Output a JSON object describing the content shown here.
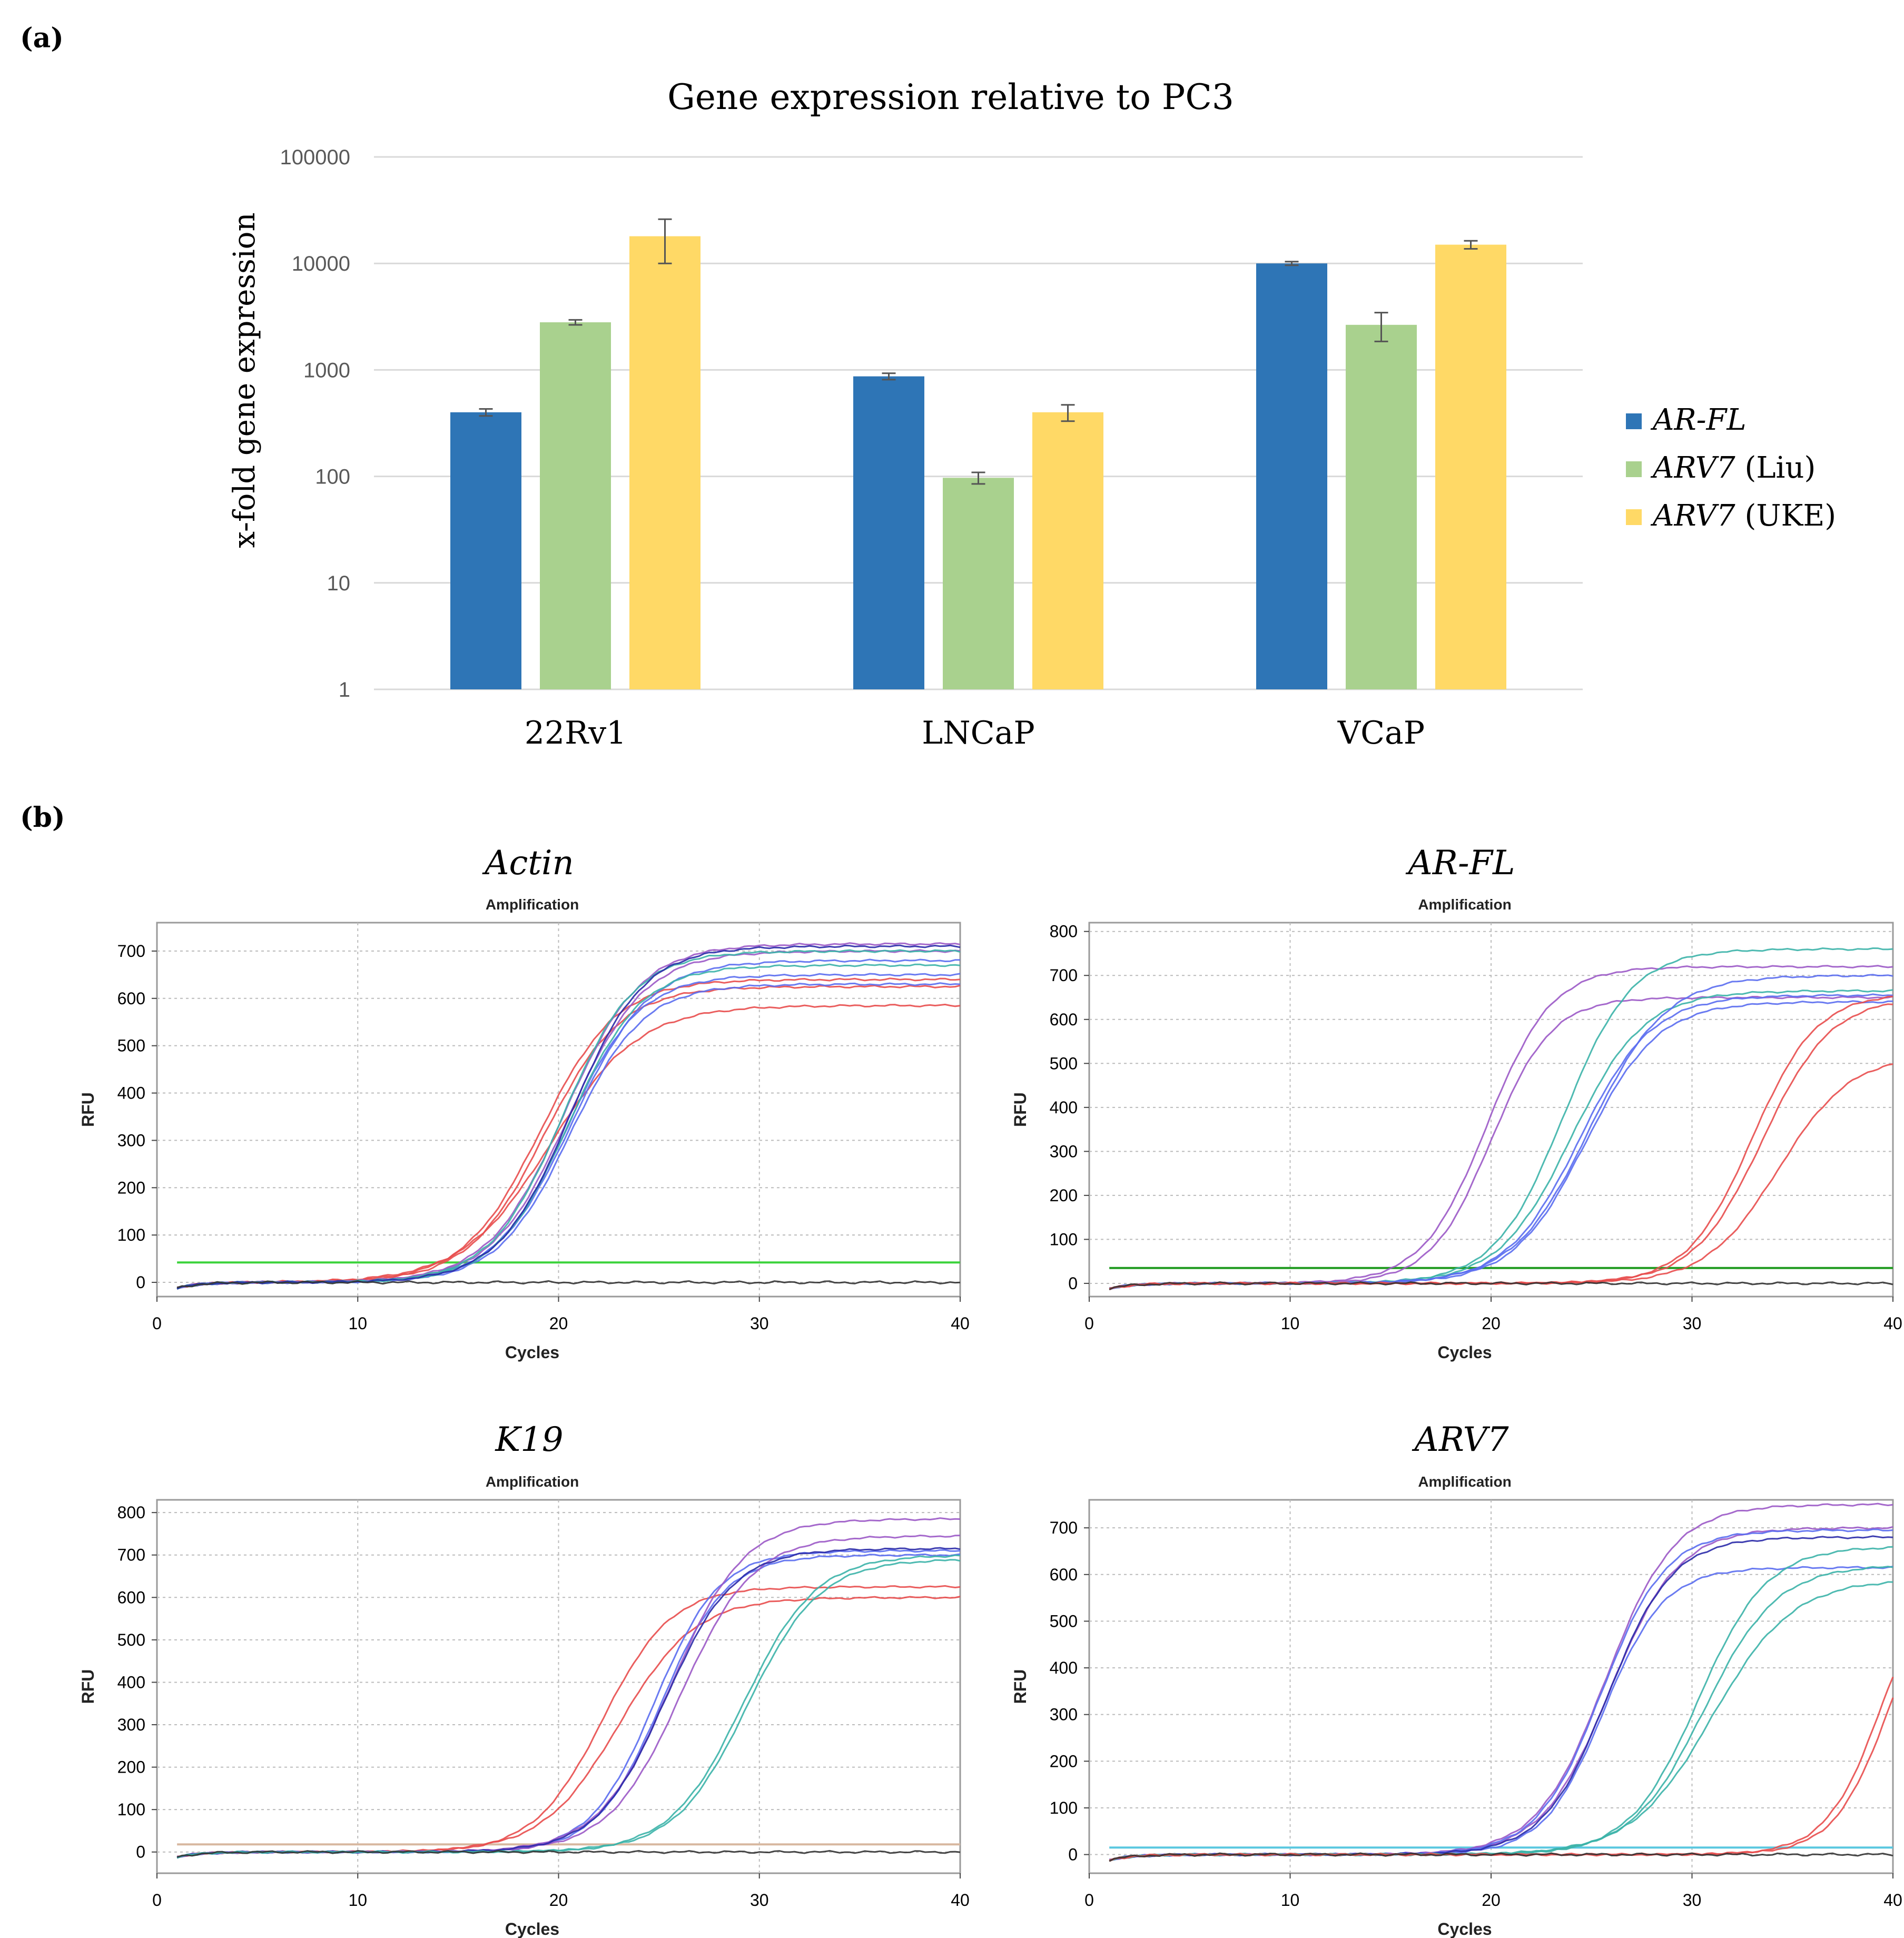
{
  "panel_a_label": "(a)",
  "panel_b_label": "(b)",
  "colors": {
    "ar_fl": "#2e75b6",
    "arv7_liu": "#a9d18e",
    "arv7_uke": "#ffd966",
    "grid": "#d9d9d9",
    "threshold_green": "#3cd33c",
    "threshold_darkgreen": "#1f9a1f",
    "threshold_tan": "#d8b8a0",
    "threshold_cyan": "#5ac8e0"
  },
  "chart_data": [
    {
      "id": "bar",
      "type": "bar",
      "title": "Gene expression relative to PC3",
      "ylabel": "x-fold gene expression",
      "xlabel": "",
      "yscale": "log",
      "ylim": [
        1,
        100000
      ],
      "yticks": [
        "1",
        "10",
        "100",
        "1000",
        "10000",
        "100000"
      ],
      "categories": [
        "22Rv1",
        "LNCaP",
        "VCaP"
      ],
      "legend_position": "right",
      "series": [
        {
          "name": "AR-FL",
          "name_suffix": "",
          "values": [
            400,
            870,
            10000
          ],
          "errors": [
            30,
            60,
            400
          ]
        },
        {
          "name": "ARV7",
          "name_suffix": " (Liu)",
          "values": [
            2800,
            97,
            2650
          ],
          "errors": [
            150,
            12,
            800
          ]
        },
        {
          "name": "ARV7",
          "name_suffix": " (UKE)",
          "values": [
            18000,
            400,
            15000
          ],
          "errors": [
            8000,
            70,
            1300
          ]
        }
      ]
    },
    {
      "id": "actin",
      "type": "line",
      "gene": "Actin",
      "title": "Amplification",
      "xlabel": "Cycles",
      "ylabel": "RFU",
      "xlim": [
        0,
        40
      ],
      "ylim": [
        -30,
        760
      ],
      "xticks": [
        0,
        10,
        20,
        30,
        40
      ],
      "yticks": [
        0,
        100,
        200,
        300,
        400,
        500,
        600,
        700
      ],
      "threshold": 42,
      "threshold_color": "#3cd33c",
      "series": [
        {
          "color": "#e84c4c",
          "ct": 19.6,
          "plateau": 585,
          "slope": 2.2
        },
        {
          "color": "#e84c4c",
          "ct": 19.3,
          "plateau": 625,
          "slope": 1.9
        },
        {
          "color": "#e84c4c",
          "ct": 19.1,
          "plateau": 640,
          "slope": 1.9
        },
        {
          "color": "#5a6df0",
          "ct": 20.4,
          "plateau": 650,
          "slope": 1.8
        },
        {
          "color": "#5a6df0",
          "ct": 20.6,
          "plateau": 630,
          "slope": 1.8
        },
        {
          "color": "#5a6df0",
          "ct": 20.7,
          "plateau": 680,
          "slope": 1.9
        },
        {
          "color": "#9b59c6",
          "ct": 20.3,
          "plateau": 715,
          "slope": 1.9
        },
        {
          "color": "#9b59c6",
          "ct": 20.5,
          "plateau": 700,
          "slope": 1.9
        },
        {
          "color": "#3bb3a8",
          "ct": 20.2,
          "plateau": 700,
          "slope": 1.8
        },
        {
          "color": "#3bb3a8",
          "ct": 20.5,
          "plateau": 670,
          "slope": 1.8
        },
        {
          "color": "#2a2aa8",
          "ct": 20.6,
          "plateau": 710,
          "slope": 1.8
        },
        {
          "color": "#333333",
          "ct": 99,
          "plateau": 0,
          "slope": 2.0
        }
      ]
    },
    {
      "id": "arfl",
      "type": "line",
      "gene": "AR-FL",
      "title": "Amplification",
      "xlabel": "Cycles",
      "ylabel": "RFU",
      "xlim": [
        0,
        40
      ],
      "ylim": [
        -30,
        820
      ],
      "xticks": [
        0,
        10,
        20,
        30,
        40
      ],
      "yticks": [
        0,
        100,
        200,
        300,
        400,
        500,
        600,
        700,
        800
      ],
      "threshold": 35,
      "threshold_color": "#1f9a1f",
      "series": [
        {
          "color": "#9b59c6",
          "ct": 19.8,
          "plateau": 720,
          "slope": 1.6
        },
        {
          "color": "#9b59c6",
          "ct": 20.0,
          "plateau": 650,
          "slope": 1.5
        },
        {
          "color": "#3bb3a8",
          "ct": 23.6,
          "plateau": 760,
          "slope": 1.7
        },
        {
          "color": "#3bb3a8",
          "ct": 24.0,
          "plateau": 665,
          "slope": 1.8
        },
        {
          "color": "#5a6df0",
          "ct": 24.4,
          "plateau": 655,
          "slope": 1.8
        },
        {
          "color": "#5a6df0",
          "ct": 24.7,
          "plateau": 640,
          "slope": 1.8
        },
        {
          "color": "#5a6df0",
          "ct": 24.9,
          "plateau": 700,
          "slope": 1.9
        },
        {
          "color": "#e84c4c",
          "ct": 33.0,
          "plateau": 660,
          "slope": 1.6
        },
        {
          "color": "#e84c4c",
          "ct": 33.5,
          "plateau": 650,
          "slope": 1.7
        },
        {
          "color": "#e84c4c",
          "ct": 34.3,
          "plateau": 520,
          "slope": 1.8
        },
        {
          "color": "#333333",
          "ct": 99,
          "plateau": 0,
          "slope": 2.0
        }
      ]
    },
    {
      "id": "k19",
      "type": "line",
      "gene": "K19",
      "title": "Amplification",
      "xlabel": "Cycles",
      "ylabel": "RFU",
      "xlim": [
        0,
        40
      ],
      "ylim": [
        -50,
        830
      ],
      "xticks": [
        0,
        10,
        20,
        30,
        40
      ],
      "yticks": [
        0,
        100,
        200,
        300,
        400,
        500,
        600,
        700,
        800
      ],
      "threshold": 18,
      "threshold_color": "#d8b8a0",
      "series": [
        {
          "color": "#e84c4c",
          "ct": 22.2,
          "plateau": 625,
          "slope": 1.7
        },
        {
          "color": "#e84c4c",
          "ct": 23.0,
          "plateau": 600,
          "slope": 1.9
        },
        {
          "color": "#5a6df0",
          "ct": 24.8,
          "plateau": 710,
          "slope": 1.6
        },
        {
          "color": "#5a6df0",
          "ct": 25.1,
          "plateau": 700,
          "slope": 1.6
        },
        {
          "color": "#9b59c6",
          "ct": 25.6,
          "plateau": 785,
          "slope": 1.8
        },
        {
          "color": "#9b59c6",
          "ct": 26.1,
          "plateau": 745,
          "slope": 1.8
        },
        {
          "color": "#2a2aa8",
          "ct": 25.3,
          "plateau": 715,
          "slope": 1.7
        },
        {
          "color": "#3bb3a8",
          "ct": 29.2,
          "plateau": 700,
          "slope": 1.8
        },
        {
          "color": "#3bb3a8",
          "ct": 29.4,
          "plateau": 690,
          "slope": 1.8
        },
        {
          "color": "#333333",
          "ct": 99,
          "plateau": 0,
          "slope": 2.0
        }
      ]
    },
    {
      "id": "arv7",
      "type": "line",
      "gene": "ARV7",
      "title": "Amplification",
      "xlabel": "Cycles",
      "ylabel": "RFU",
      "xlim": [
        0,
        40
      ],
      "ylim": [
        -40,
        760
      ],
      "xticks": [
        0,
        10,
        20,
        30,
        40
      ],
      "yticks": [
        0,
        100,
        200,
        300,
        400,
        500,
        600,
        700
      ],
      "threshold": 15,
      "threshold_color": "#5ac8e0",
      "series": [
        {
          "color": "#9b59c6",
          "ct": 25.7,
          "plateau": 750,
          "slope": 1.7
        },
        {
          "color": "#9b59c6",
          "ct": 25.9,
          "plateau": 700,
          "slope": 1.7
        },
        {
          "color": "#5a6df0",
          "ct": 25.5,
          "plateau": 695,
          "slope": 1.6
        },
        {
          "color": "#5a6df0",
          "ct": 25.6,
          "plateau": 615,
          "slope": 1.5
        },
        {
          "color": "#2a2aa8",
          "ct": 25.8,
          "plateau": 680,
          "slope": 1.6
        },
        {
          "color": "#3bb3a8",
          "ct": 30.3,
          "plateau": 660,
          "slope": 1.7
        },
        {
          "color": "#3bb3a8",
          "ct": 30.6,
          "plateau": 620,
          "slope": 1.8
        },
        {
          "color": "#3bb3a8",
          "ct": 31.0,
          "plateau": 590,
          "slope": 2.0
        },
        {
          "color": "#e84c4c",
          "ct": 39.5,
          "plateau": 650,
          "slope": 1.4
        },
        {
          "color": "#e84c4c",
          "ct": 39.9,
          "plateau": 650,
          "slope": 1.4
        },
        {
          "color": "#333333",
          "ct": 99,
          "plateau": 0,
          "slope": 2.0
        }
      ]
    }
  ]
}
